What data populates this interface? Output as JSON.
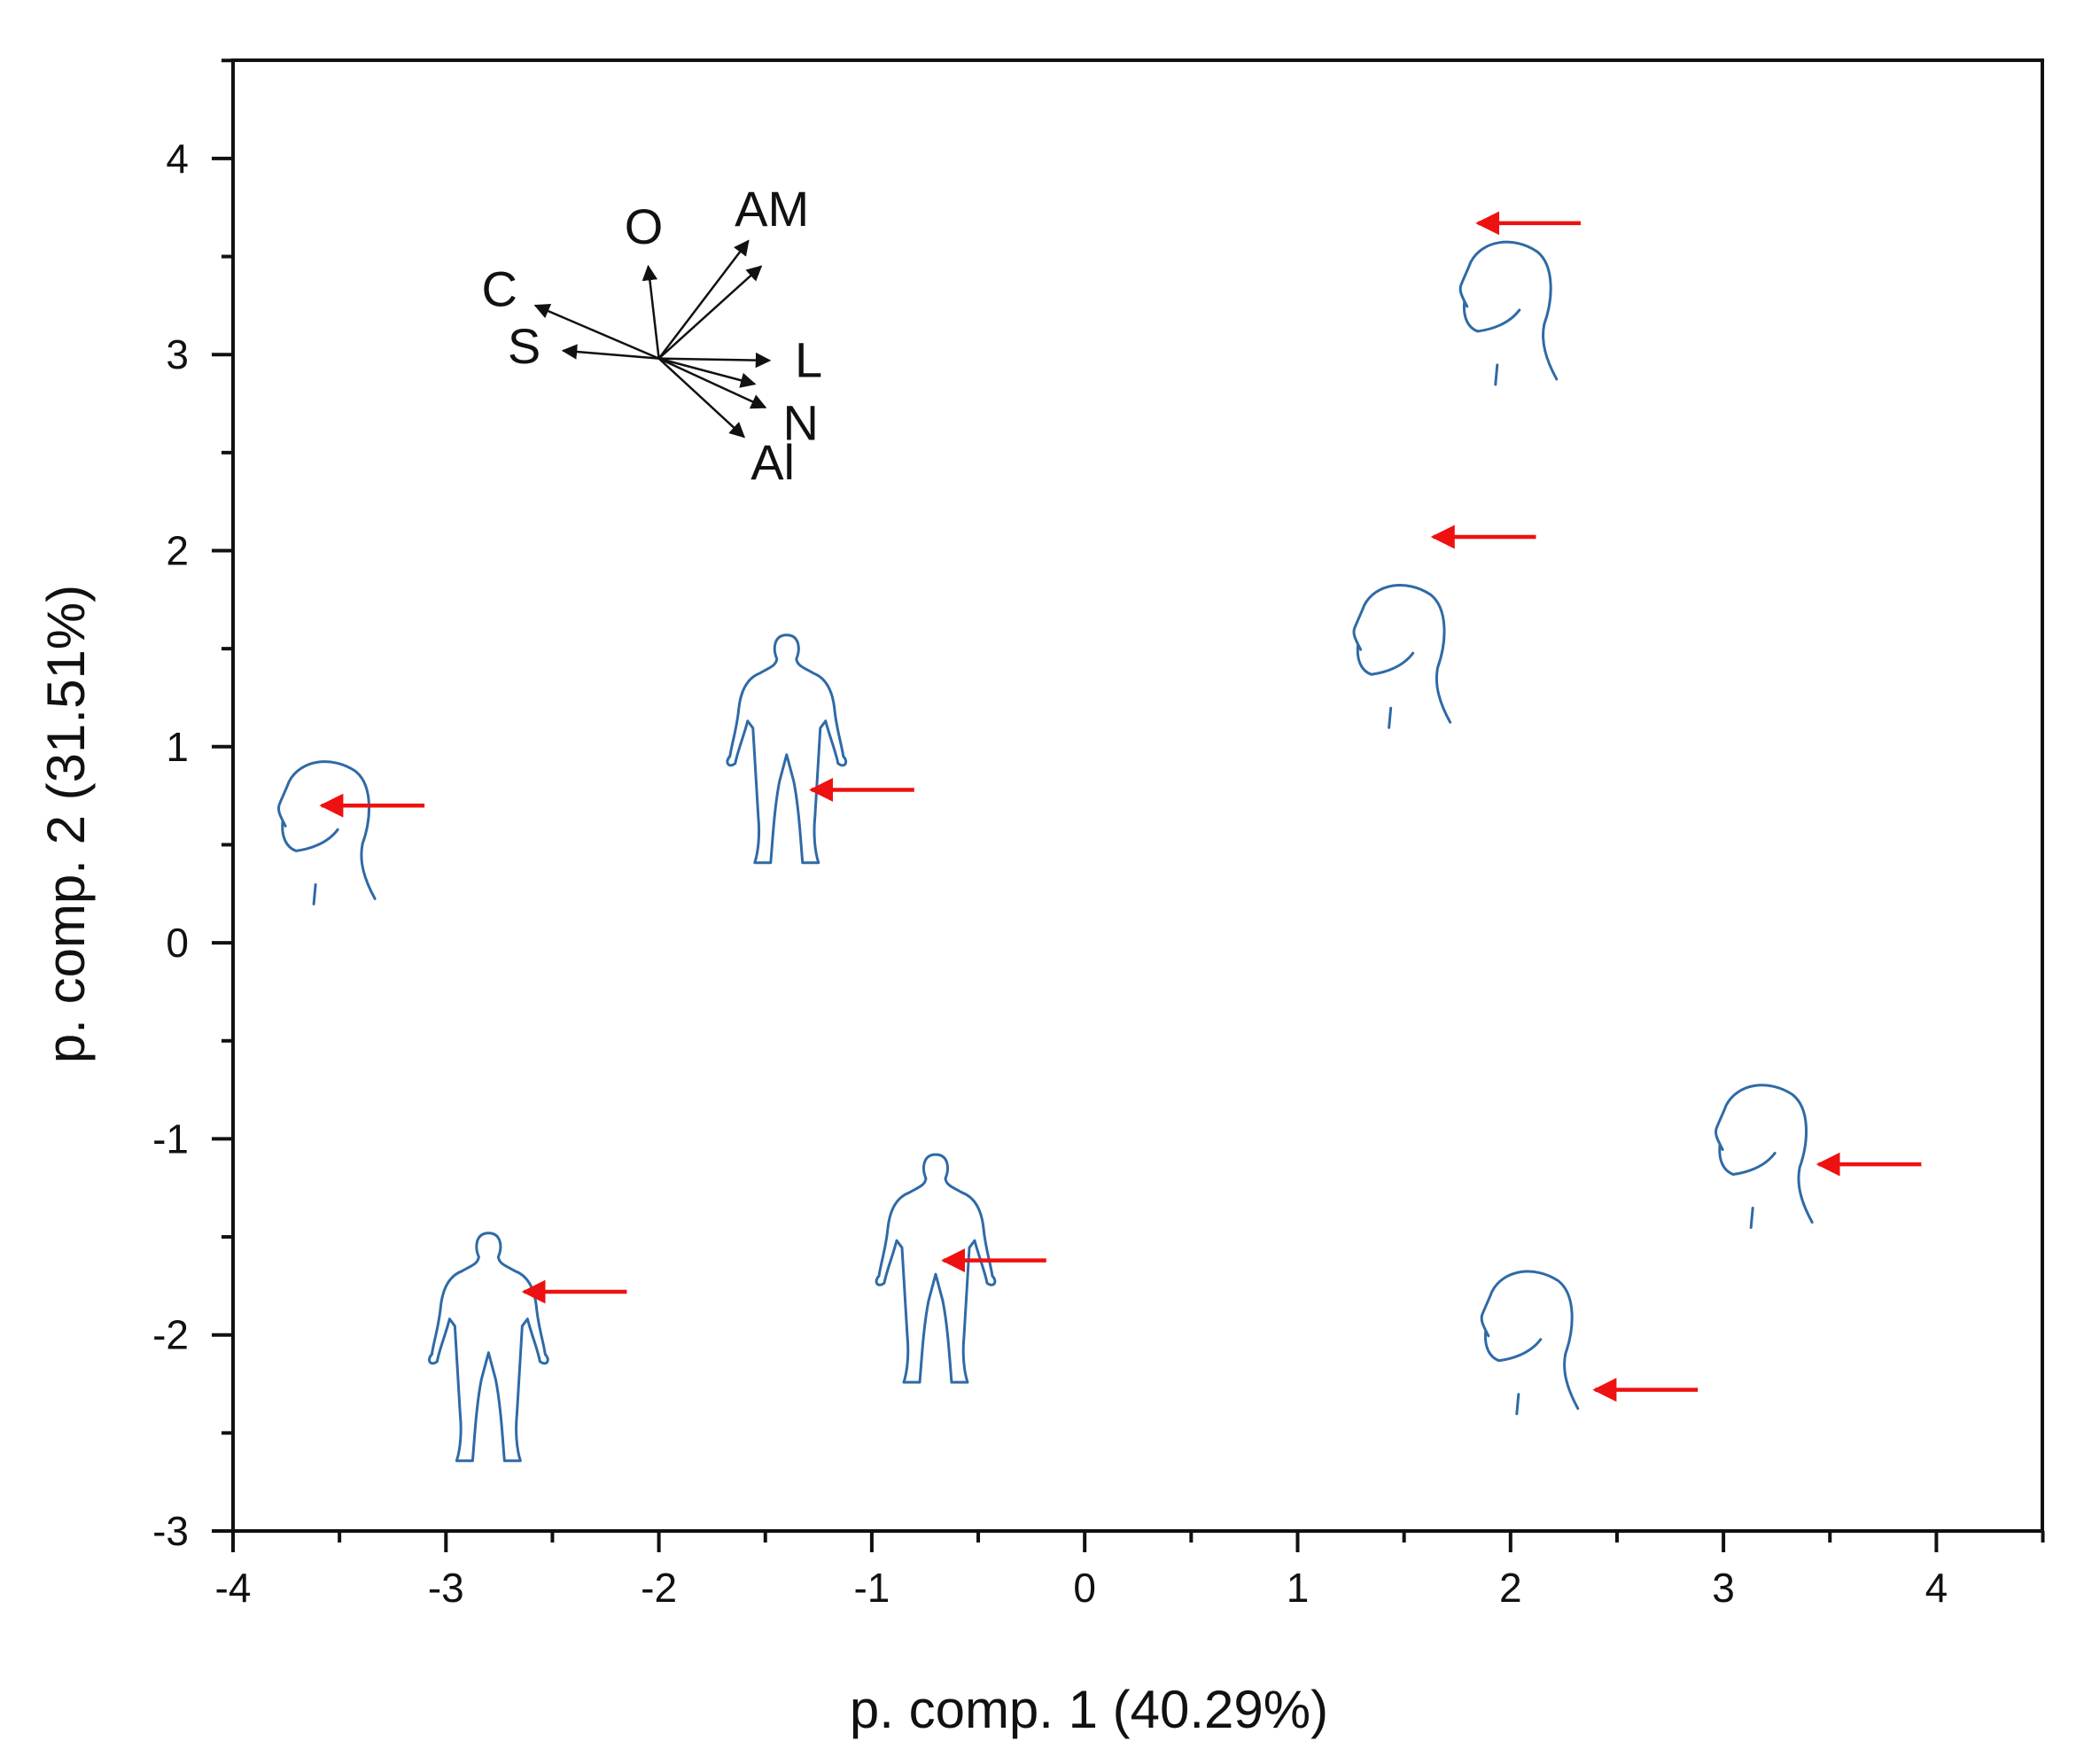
{
  "chart_data": {
    "type": "scatter",
    "title": "",
    "xlabel": "p. comp. 1 (40.29%)",
    "ylabel": "p. comp. 2 (31.51%)",
    "xlim": [
      -4,
      4.5
    ],
    "ylim": [
      -3,
      4.5
    ],
    "xticks": [
      -4,
      -3,
      -2,
      -1,
      0,
      1,
      2,
      3,
      4
    ],
    "yticks": [
      -3,
      -2,
      -1,
      0,
      1,
      2,
      3,
      4
    ],
    "grid": false,
    "colors": {
      "axis": "#111111",
      "figure": "#2f6aa6",
      "arrow": "#ee1111",
      "loading": "#111111"
    },
    "loading_origin": [
      -2.0,
      2.98
    ],
    "loadings": [
      {
        "label": "O",
        "x": -2.05,
        "y": 3.45
      },
      {
        "label": "AM",
        "x": -1.58,
        "y": 3.58
      },
      {
        "label": "",
        "x": -1.52,
        "y": 3.45
      },
      {
        "label": "C",
        "x": -2.58,
        "y": 3.25
      },
      {
        "label": "S",
        "x": -2.45,
        "y": 3.02
      },
      {
        "label": "L",
        "x": -1.48,
        "y": 2.97
      },
      {
        "label": "",
        "x": -1.55,
        "y": 2.85
      },
      {
        "label": "N",
        "x": -1.5,
        "y": 2.73
      },
      {
        "label": "Al",
        "x": -1.6,
        "y": 2.58
      }
    ],
    "points": [
      {
        "kind": "head",
        "x": -3.6,
        "y": 0.55,
        "arrow_x": -3.6,
        "arrow_y": 0.7
      },
      {
        "kind": "body",
        "x": -1.4,
        "y": 1.05,
        "arrow_x": -1.3,
        "arrow_y": 0.78
      },
      {
        "kind": "body",
        "x": -2.8,
        "y": -2.0,
        "arrow_x": -2.65,
        "arrow_y": -1.78
      },
      {
        "kind": "body",
        "x": -0.7,
        "y": -1.6,
        "arrow_x": -0.68,
        "arrow_y": -1.62
      },
      {
        "kind": "head",
        "x": 1.95,
        "y": 3.2,
        "arrow_x": 1.83,
        "arrow_y": 3.67
      },
      {
        "kind": "head",
        "x": 1.45,
        "y": 1.45,
        "arrow_x": 1.62,
        "arrow_y": 2.07
      },
      {
        "kind": "head",
        "x": 3.15,
        "y": -1.1,
        "arrow_x": 3.43,
        "arrow_y": -1.13
      },
      {
        "kind": "head",
        "x": 2.05,
        "y": -2.05,
        "arrow_x": 2.38,
        "arrow_y": -2.28
      }
    ]
  }
}
